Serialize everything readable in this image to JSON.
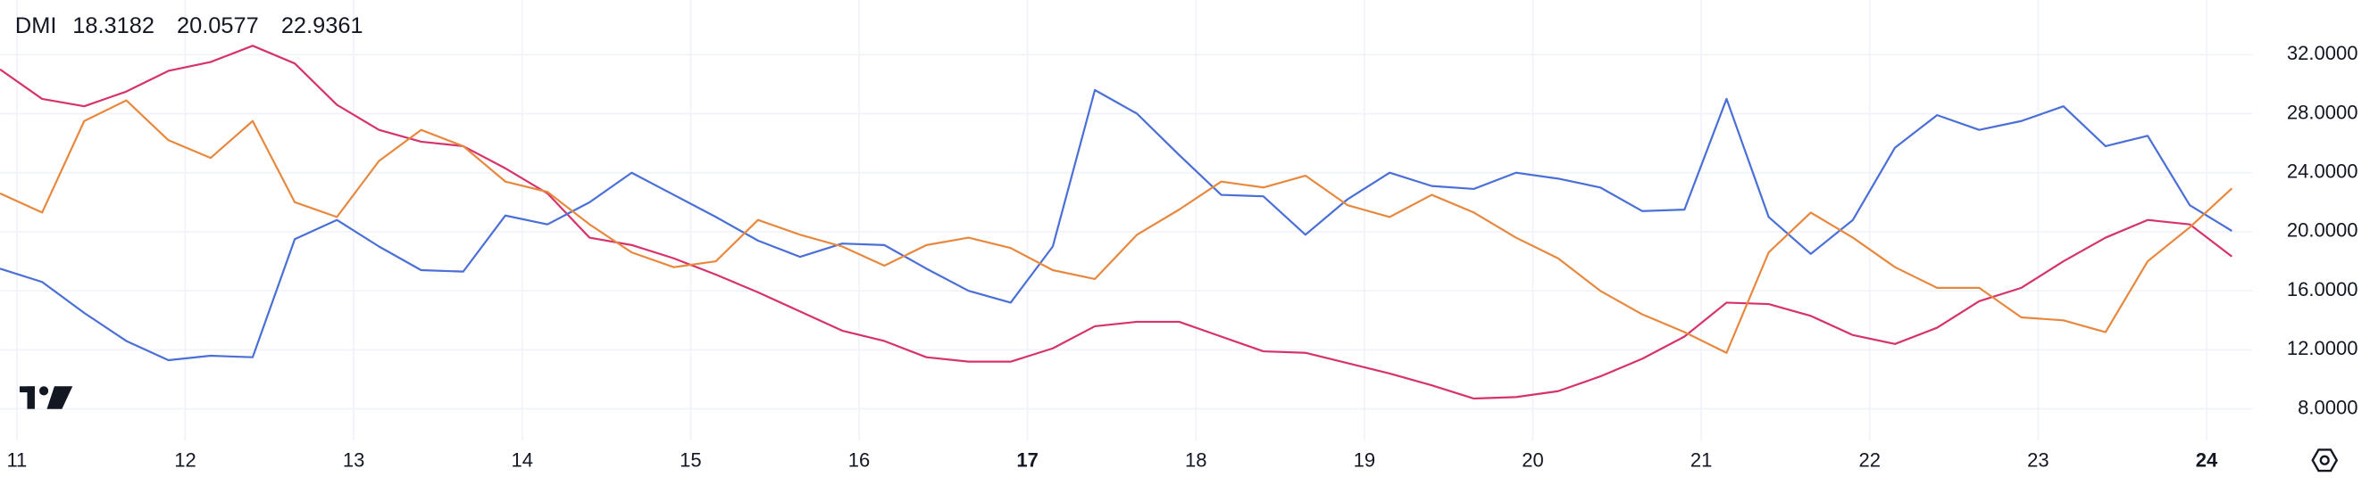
{
  "chart_data": {
    "type": "line",
    "title": "DMI",
    "x": [
      10.9,
      11.15,
      11.4,
      11.65,
      11.9,
      12.15,
      12.4,
      12.65,
      12.9,
      13.15,
      13.4,
      13.65,
      13.9,
      14.15,
      14.4,
      14.65,
      14.9,
      15.15,
      15.4,
      15.65,
      15.9,
      16.15,
      16.4,
      16.65,
      16.9,
      17.15,
      17.4,
      17.65,
      17.9,
      18.15,
      18.4,
      18.65,
      18.9,
      19.15,
      19.4,
      19.65,
      19.9,
      20.15,
      20.4,
      20.65,
      20.9,
      21.15,
      21.4,
      21.65,
      21.9,
      22.15,
      22.4,
      22.65,
      22.9,
      23.15,
      23.4,
      23.65,
      23.9,
      24.15
    ],
    "series": [
      {
        "color": "#d6336c",
        "values": [
          31.0,
          29.0,
          28.5,
          29.5,
          30.9,
          31.5,
          32.6,
          31.4,
          28.6,
          26.9,
          26.1,
          25.8,
          24.3,
          22.6,
          19.6,
          19.1,
          18.2,
          17.1,
          15.9,
          14.6,
          13.3,
          12.6,
          11.5,
          11.2,
          11.2,
          12.1,
          13.6,
          13.9,
          13.9,
          12.9,
          11.9,
          11.8,
          11.1,
          10.4,
          9.6,
          8.7,
          8.8,
          9.2,
          10.2,
          11.4,
          12.9,
          15.2,
          15.1,
          14.3,
          13.0,
          12.4,
          13.5,
          15.3,
          16.2,
          18.0,
          19.6,
          20.8,
          20.5,
          18.3182
        ]
      },
      {
        "color": "#4a6fd6",
        "values": [
          17.5,
          16.6,
          14.5,
          12.6,
          11.3,
          11.6,
          11.5,
          19.5,
          20.8,
          19.0,
          17.4,
          17.3,
          21.1,
          20.5,
          22.0,
          24.0,
          22.5,
          21.0,
          19.4,
          18.3,
          19.2,
          19.1,
          17.5,
          16.0,
          15.2,
          19.0,
          29.6,
          28.0,
          25.2,
          22.5,
          22.4,
          19.8,
          22.2,
          24.0,
          23.1,
          22.9,
          24.0,
          23.6,
          23.0,
          21.4,
          21.5,
          29.0,
          21.0,
          18.5,
          20.8,
          25.7,
          27.9,
          26.9,
          27.5,
          28.5,
          25.8,
          26.5,
          21.8,
          20.0577
        ]
      },
      {
        "color": "#e8883e",
        "values": [
          22.6,
          21.3,
          27.5,
          28.9,
          26.2,
          25.0,
          27.5,
          22.0,
          21.0,
          24.8,
          26.9,
          25.8,
          23.4,
          22.7,
          20.5,
          18.6,
          17.6,
          18.0,
          20.8,
          19.8,
          19.0,
          17.7,
          19.1,
          19.6,
          18.9,
          17.4,
          16.8,
          19.8,
          21.5,
          23.4,
          23.0,
          23.8,
          21.8,
          21.0,
          22.5,
          21.3,
          19.6,
          18.2,
          16.0,
          14.4,
          13.2,
          11.8,
          18.6,
          21.3,
          19.6,
          17.6,
          16.2,
          16.2,
          14.2,
          14.0,
          13.2,
          18.0,
          20.3,
          22.9361
        ]
      }
    ],
    "xlim": [
      10.9,
      24.27
    ],
    "xticks": [
      11,
      12,
      13,
      14,
      15,
      16,
      17,
      18,
      19,
      20,
      21,
      22,
      23,
      24
    ],
    "bold_xticks": [
      6,
      13
    ],
    "ylim": [
      5.85,
      35.7
    ],
    "yticks": [
      {
        "value": 8,
        "label": "8.0000"
      },
      {
        "value": 12,
        "label": "12.0000"
      },
      {
        "value": 16,
        "label": "16.0000"
      },
      {
        "value": 20,
        "label": "20.0000"
      },
      {
        "value": 24,
        "label": "24.0000"
      },
      {
        "value": 28,
        "label": "28.0000"
      },
      {
        "value": 32,
        "label": "32.0000"
      }
    ],
    "grid": true
  }
}
